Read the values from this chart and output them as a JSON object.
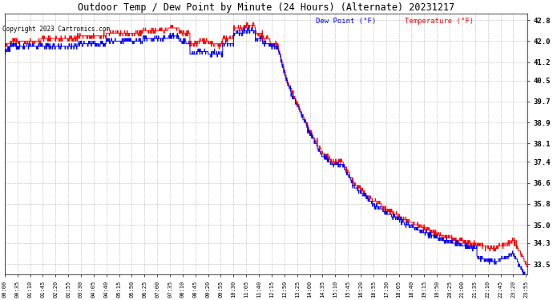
{
  "title": "Outdoor Temp / Dew Point by Minute (24 Hours) (Alternate) 20231217",
  "copyright": "Copyright 2023 Cartronics.com",
  "legend_dew": "Dew Point (°F)",
  "legend_temp": "Temperature (°F)",
  "temp_color": "#ff0000",
  "dew_color": "#0000ff",
  "bg_color": "#ffffff",
  "grid_color": "#aaaaaa",
  "yticks": [
    33.5,
    34.3,
    35.0,
    35.8,
    36.6,
    37.4,
    38.1,
    38.9,
    39.7,
    40.5,
    41.2,
    42.0,
    42.8
  ],
  "ylim_min": 33.1,
  "ylim_max": 43.05,
  "tick_step_min": 35
}
